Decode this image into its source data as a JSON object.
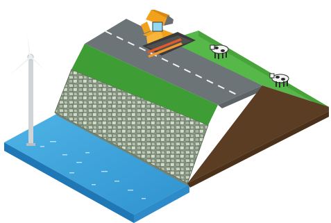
{
  "scene": {
    "subject": "dike",
    "colors": {
      "water": "#3aa2d8",
      "grass": "#4dae3c",
      "road": "#6d7478",
      "soil": "#5a3d22",
      "stone": "#a9b7a2",
      "excavator": "#f0a21c"
    },
    "elements": {
      "water": "sea-water",
      "turbine": "wind-turbine",
      "revetment": "stone-revetment",
      "road": "dike-road",
      "excavator": "excavator",
      "cows": [
        "cow",
        "cow"
      ]
    }
  }
}
